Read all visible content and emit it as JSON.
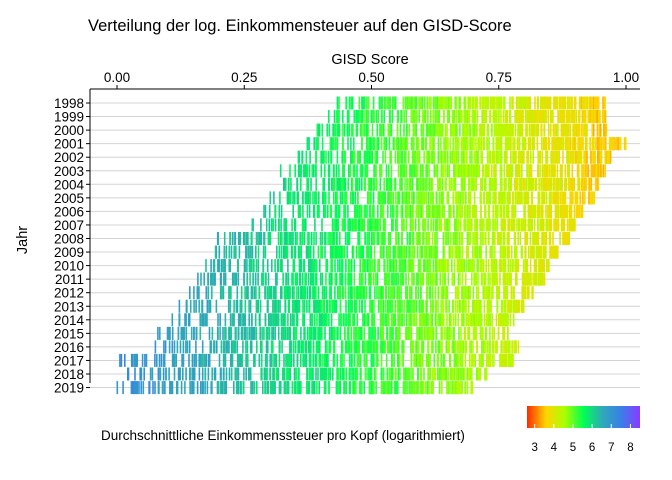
{
  "chart_data": {
    "type": "heatmap",
    "title": "Verteilung der log. Einkommensteuer auf den GISD-Score",
    "xlabel": "GISD Score",
    "ylabel": "Jahr",
    "x_axis_position": "top",
    "xlim": [
      0,
      1
    ],
    "x_ticks": [
      0,
      0.25,
      0.5,
      0.75,
      1
    ],
    "x_tick_labels": [
      "0.00",
      "0.25",
      "0.50",
      "0.75",
      "1.00"
    ],
    "years": [
      "1998",
      "1999",
      "2000",
      "2001",
      "2002",
      "2003",
      "2004",
      "2005",
      "2006",
      "2007",
      "2008",
      "2009",
      "2010",
      "2011",
      "2012",
      "2013",
      "2014",
      "2015",
      "2016",
      "2017",
      "2018",
      "2019"
    ],
    "gisd_range_by_year": [
      {
        "year": "1998",
        "min": 0.43,
        "max": 0.96
      },
      {
        "year": "1999",
        "min": 0.41,
        "max": 0.96
      },
      {
        "year": "2000",
        "min": 0.39,
        "max": 0.97
      },
      {
        "year": "2001",
        "min": 0.36,
        "max": 1.0
      },
      {
        "year": "2002",
        "min": 0.34,
        "max": 0.97
      },
      {
        "year": "2003",
        "min": 0.32,
        "max": 0.96
      },
      {
        "year": "2004",
        "min": 0.31,
        "max": 0.95
      },
      {
        "year": "2005",
        "min": 0.3,
        "max": 0.94
      },
      {
        "year": "2006",
        "min": 0.28,
        "max": 0.92
      },
      {
        "year": "2007",
        "min": 0.26,
        "max": 0.9
      },
      {
        "year": "2008",
        "min": 0.19,
        "max": 0.89
      },
      {
        "year": "2009",
        "min": 0.19,
        "max": 0.87
      },
      {
        "year": "2010",
        "min": 0.17,
        "max": 0.85
      },
      {
        "year": "2011",
        "min": 0.15,
        "max": 0.84
      },
      {
        "year": "2012",
        "min": 0.14,
        "max": 0.82
      },
      {
        "year": "2013",
        "min": 0.12,
        "max": 0.8
      },
      {
        "year": "2014",
        "min": 0.1,
        "max": 0.78
      },
      {
        "year": "2015",
        "min": 0.08,
        "max": 0.77
      },
      {
        "year": "2016",
        "min": 0.07,
        "max": 0.79
      },
      {
        "year": "2017",
        "min": 0.0,
        "max": 0.78
      },
      {
        "year": "2018",
        "min": 0.02,
        "max": 0.73
      },
      {
        "year": "2019",
        "min": 0.0,
        "max": 0.7
      }
    ],
    "legend": {
      "title": "Durchschnittliche Einkommenssteuer pro Kopf (logarithmiert)",
      "position": "bottom",
      "range": [
        2.6,
        8.5
      ],
      "ticks": [
        3,
        4,
        5,
        6,
        7,
        8
      ],
      "tick_labels": [
        "3",
        "4",
        "5",
        "6",
        "7",
        "8"
      ],
      "colors": [
        "#ff2a00",
        "#ffd400",
        "#aaff00",
        "#00ff55",
        "#2fa9b8",
        "#3a7fe8",
        "#8a3aff"
      ]
    },
    "grid": true
  }
}
